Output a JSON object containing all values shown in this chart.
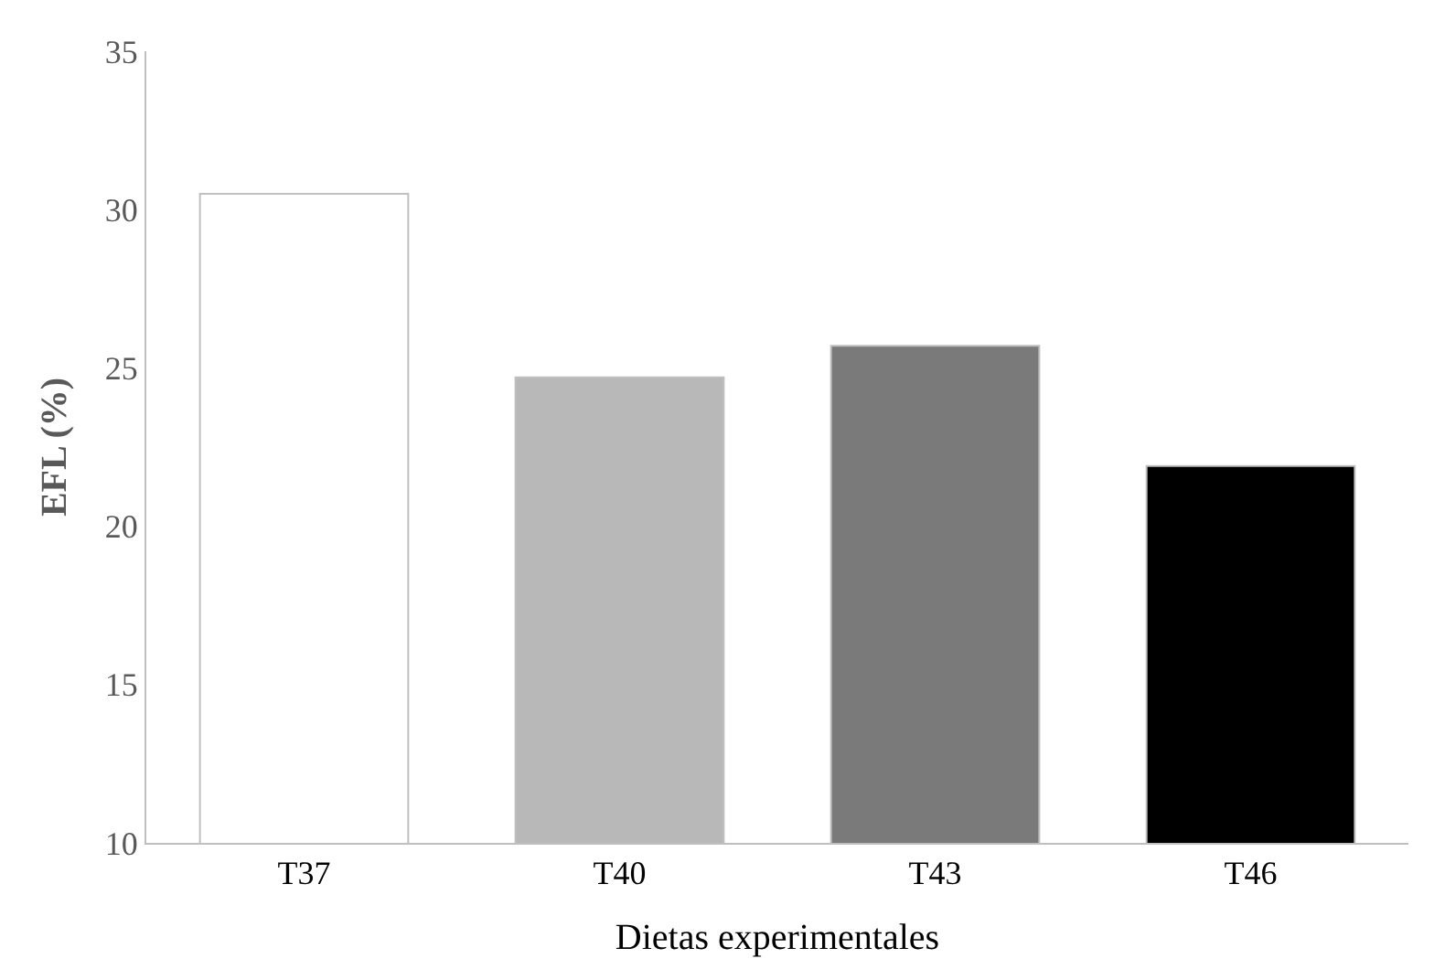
{
  "chart_data": {
    "type": "bar",
    "xlabel": "Dietas experimentales",
    "ylabel": "EFL (%)",
    "categories": [
      "T37",
      "T40",
      "T43",
      "T46"
    ],
    "values": [
      30.5,
      24.7,
      25.7,
      21.9
    ],
    "colors": [
      "#ffffff",
      "#b8b8b8",
      "#7a7a7a",
      "#000000"
    ],
    "ylim": [
      10,
      35
    ],
    "yticks": [
      10,
      15,
      20,
      25,
      30,
      35
    ]
  }
}
